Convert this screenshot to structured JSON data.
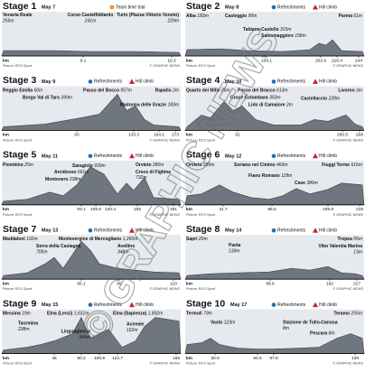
{
  "stages": [
    {
      "title": "Stage 1",
      "date": "May 7",
      "legend": [
        "Team time trial"
      ],
      "places": [
        {
          "name": "Venaria Reale",
          "alt": "255m"
        },
        {
          "name": "Corso Castelfiddardo",
          "alt": "241m"
        },
        {
          "name": "Turin (Plazza Vittorio Veneto)",
          "alt": "229m"
        }
      ],
      "km": [
        9.1,
        19.3
      ]
    },
    {
      "title": "Stage 2",
      "date": "May 8",
      "legend": [
        "Refreshments",
        "Hill climb"
      ],
      "places": [
        {
          "name": "Alba",
          "alt": "183m"
        },
        {
          "name": "Casteggio",
          "alt": "90m"
        },
        {
          "name": "Parma",
          "alt": "61m"
        },
        {
          "name": "Tabiano Castello",
          "alt": "315m"
        },
        {
          "name": "Salsomaggiore",
          "alt": "158m"
        }
      ],
      "km": [
        109.1,
        202.6,
        216.4,
        244
      ]
    },
    {
      "title": "Stage 3",
      "date": "May 9",
      "legend": [
        "Refreshments",
        "Hill climb"
      ],
      "places": [
        {
          "name": "Reggio Emilia",
          "alt": "60m"
        },
        {
          "name": "Passo del Bocco",
          "alt": "957m"
        },
        {
          "name": "Rapallo",
          "alt": "2m"
        },
        {
          "name": "Borgo Val di Taro",
          "alt": "399m"
        },
        {
          "name": "Madonna delle Grazie",
          "alt": "183m"
        }
      ],
      "km": [
        93,
        133.3,
        164.1,
        173
      ]
    },
    {
      "title": "Stage 4",
      "date": "May 10",
      "legend": [
        "Refreshments",
        "Hill climb"
      ],
      "places": [
        {
          "name": "Quarto dei Mille",
          "alt": "26m"
        },
        {
          "name": "Passo del Bracco",
          "alt": "613m"
        },
        {
          "name": "Livorno",
          "alt": "3m"
        },
        {
          "name": "Croce Colombara",
          "alt": "350m"
        },
        {
          "name": "Castellaccio",
          "alt": "228m"
        },
        {
          "name": "Lido di Camaiore",
          "alt": "2m"
        }
      ],
      "km": [
        62,
        200.5,
        208
      ]
    },
    {
      "title": "Stage 5",
      "date": "May 11",
      "legend": [
        "Refreshments",
        "Hill climb"
      ],
      "places": [
        {
          "name": "Piombino",
          "alt": "25m"
        },
        {
          "name": "Saragiolo",
          "alt": "930m"
        },
        {
          "name": "Orvieto",
          "alt": "280m"
        },
        {
          "name": "Montenero",
          "alt": "238m"
        },
        {
          "name": "Arcidosso",
          "alt": "661m"
        },
        {
          "name": "Croce di Fighine",
          "alt": "732m"
        }
      ],
      "km": [
        93.1,
        106.6,
        120.4,
        155,
        191
      ]
    },
    {
      "title": "Stage 6",
      "date": "May 12",
      "legend": [
        "Refreshments",
        "Hill climb"
      ],
      "places": [
        {
          "name": "Orvieto",
          "alt": "280m"
        },
        {
          "name": "Soriano nel Cimino",
          "alt": "460m"
        },
        {
          "name": "Fiuggi Terme",
          "alt": "616m"
        },
        {
          "name": "Fiano Romano",
          "alt": "118m"
        },
        {
          "name": "Cave",
          "alt": "386m"
        }
      ],
      "km": [
        41.7,
        96.5,
        159.8,
        216
      ]
    },
    {
      "title": "Stage 7",
      "date": "May 13",
      "legend": [
        "Refreshments",
        "Hill climb"
      ],
      "places": [
        {
          "name": "Maddaloni",
          "alt": "102m"
        },
        {
          "name": "Montevergine di Mercogliano",
          "alt": "1,260m"
        },
        {
          "name": "Serra della Castagna",
          "alt": "705m"
        },
        {
          "name": "Avellino",
          "alt": "348m"
        }
      ],
      "km": [
        66.1,
        89,
        110
      ]
    },
    {
      "title": "Stage 8",
      "date": "May 14",
      "legend": [
        "Refreshments",
        "Hill climb"
      ],
      "places": [
        {
          "name": "Sapri",
          "alt": "20m"
        },
        {
          "name": "Paola",
          "alt": "139m"
        },
        {
          "name": "Tropea",
          "alt": "55m"
        },
        {
          "name": "Vibo Valentia Marina",
          "alt": "13m"
        }
      ],
      "km": [
        98.6,
        192,
        217
      ]
    },
    {
      "title": "Stage 9",
      "date": "May 15",
      "legend": [
        "Refreshments",
        "Hill climb"
      ],
      "places": [
        {
          "name": "Messina",
          "alt": "19m"
        },
        {
          "name": "Etna (Lenzi)",
          "alt": "1,631m"
        },
        {
          "name": "Etna (Sapienza)",
          "alt": "1,892m"
        },
        {
          "name": "Taormina",
          "alt": "238m"
        },
        {
          "name": "Linguaglossa",
          "alt": "549m"
        },
        {
          "name": "Acireale",
          "alt": "162m"
        }
      ],
      "km": [
        46,
        90.2,
        106.9,
        122.7,
        169
      ]
    },
    {
      "title": "Stage 10",
      "date": "May 17",
      "legend": [
        "Refreshments",
        "Hill climb"
      ],
      "places": [
        {
          "name": "Termoli",
          "alt": "79m"
        },
        {
          "name": "Teramo",
          "alt": "255m"
        },
        {
          "name": "Vasto",
          "alt": "123m"
        },
        {
          "name": "Stazione de Tollo-Canosa",
          "alt": "8m"
        },
        {
          "name": "Pescara",
          "alt": "8m"
        }
      ],
      "km": [
        30.9,
        84.5,
        97.8,
        139
      ]
    }
  ],
  "km_label": "km",
  "credit": "Picture: RCS Sport",
  "copyright": "© GRAPHIC NEWS",
  "watermark": "© GRAPHIC NEWS"
}
